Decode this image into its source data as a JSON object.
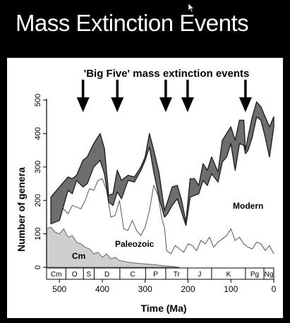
{
  "slide": {
    "title": "Mass Extinction Events"
  },
  "chart_data": {
    "type": "area",
    "title": "'Big Five' mass extinction events",
    "xlabel": "Time (Ma)",
    "ylabel": "Number of genera",
    "xlim": [
      530,
      0
    ],
    "ylim": [
      0,
      500
    ],
    "x_ticks": [
      500,
      400,
      300,
      200,
      100,
      0
    ],
    "y_ticks": [
      0,
      100,
      200,
      300,
      400,
      500
    ],
    "extinction_events_ma": [
      445,
      365,
      252,
      201,
      66
    ],
    "periods": [
      {
        "label": "Cm",
        "start": 541,
        "end": 485
      },
      {
        "label": "O",
        "start": 485,
        "end": 444
      },
      {
        "label": "S",
        "start": 444,
        "end": 419
      },
      {
        "label": "D",
        "start": 419,
        "end": 359
      },
      {
        "label": "C",
        "start": 359,
        "end": 299
      },
      {
        "label": "P",
        "start": 299,
        "end": 252
      },
      {
        "label": "Tr",
        "start": 252,
        "end": 201
      },
      {
        "label": "J",
        "start": 201,
        "end": 145
      },
      {
        "label": "K",
        "start": 145,
        "end": 66
      },
      {
        "label": "Pg",
        "start": 66,
        "end": 23
      },
      {
        "label": "Ng",
        "start": 23,
        "end": 0
      }
    ],
    "faunas": [
      {
        "name": "Cm"
      },
      {
        "name": "Paleozoic"
      },
      {
        "name": "Modern"
      }
    ],
    "series": [
      {
        "role": "total_upper",
        "x": [
          520,
          500,
          480,
          470,
          460,
          445,
          435,
          420,
          405,
          395,
          385,
          375,
          365,
          355,
          340,
          325,
          310,
          300,
          290,
          280,
          268,
          255,
          248,
          237,
          225,
          215,
          205,
          195,
          185,
          175,
          165,
          155,
          145,
          130,
          120,
          110,
          100,
          90,
          80,
          70,
          66,
          60,
          50,
          40,
          30,
          20,
          10,
          0
        ],
        "y": [
          210,
          240,
          270,
          265,
          275,
          320,
          330,
          370,
          400,
          355,
          215,
          220,
          290,
          260,
          275,
          270,
          300,
          330,
          400,
          350,
          285,
          170,
          195,
          240,
          245,
          200,
          135,
          265,
          265,
          245,
          310,
          290,
          330,
          285,
          380,
          400,
          420,
          380,
          440,
          440,
          350,
          390,
          450,
          495,
          480,
          450,
          420,
          450
        ]
      },
      {
        "role": "total_lower",
        "x": [
          520,
          500,
          480,
          470,
          460,
          445,
          435,
          420,
          405,
          395,
          385,
          375,
          365,
          355,
          340,
          325,
          310,
          300,
          290,
          280,
          268,
          255,
          248,
          237,
          225,
          215,
          205,
          195,
          185,
          175,
          165,
          155,
          145,
          130,
          120,
          110,
          100,
          90,
          80,
          70,
          66,
          60,
          50,
          40,
          30,
          20,
          10,
          0
        ],
        "y": [
          130,
          140,
          230,
          220,
          260,
          240,
          250,
          300,
          320,
          280,
          195,
          185,
          225,
          205,
          260,
          255,
          290,
          320,
          360,
          285,
          210,
          150,
          160,
          185,
          205,
          165,
          125,
          210,
          215,
          220,
          260,
          245,
          280,
          255,
          315,
          330,
          370,
          290,
          370,
          365,
          340,
          350,
          390,
          450,
          440,
          390,
          330,
          420
        ]
      },
      {
        "name": "Paleozoic",
        "x": [
          520,
          510,
          500,
          490,
          480,
          470,
          460,
          450,
          440,
          430,
          420,
          410,
          400,
          390,
          380,
          370,
          360,
          350,
          340,
          330,
          320,
          310,
          300,
          290,
          280,
          270,
          260,
          255,
          250,
          240,
          230,
          220,
          210,
          200,
          190,
          180,
          170,
          160,
          150,
          140,
          130,
          120,
          110,
          100,
          90,
          80,
          70,
          60,
          50,
          40,
          30,
          20,
          10,
          0
        ],
        "y": [
          130,
          150,
          170,
          175,
          160,
          185,
          180,
          175,
          200,
          235,
          230,
          260,
          265,
          230,
          150,
          155,
          200,
          115,
          110,
          140,
          110,
          95,
          120,
          170,
          245,
          215,
          140,
          120,
          50,
          40,
          65,
          55,
          45,
          70,
          65,
          50,
          80,
          70,
          90,
          60,
          75,
          85,
          95,
          115,
          80,
          90,
          70,
          60,
          55,
          75,
          70,
          50,
          65,
          40
        ]
      },
      {
        "name": "Cm",
        "x": [
          530,
          520,
          510,
          500,
          490,
          480,
          470,
          460,
          450,
          440,
          430,
          420,
          410,
          400,
          390,
          380,
          370,
          360,
          350,
          340,
          320,
          300,
          280,
          260,
          240,
          220
        ],
        "y": [
          115,
          120,
          105,
          100,
          115,
          90,
          95,
          75,
          70,
          60,
          55,
          40,
          45,
          30,
          40,
          25,
          30,
          20,
          18,
          15,
          12,
          10,
          8,
          5,
          3,
          0
        ]
      }
    ]
  }
}
